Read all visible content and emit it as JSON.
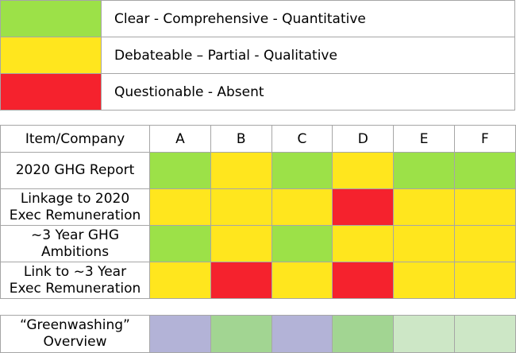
{
  "colors": {
    "green": "#9ce148",
    "yellow": "#ffe61e",
    "red": "#f5222d",
    "lavender": "#b3b3d7",
    "mid_green": "#a2d592",
    "light_green": "#cde7c6"
  },
  "legend": [
    {
      "color": "green",
      "label": "Clear - Comprehensive - Quantitative"
    },
    {
      "color": "yellow",
      "label": "Debateable – Partial - Qualitative"
    },
    {
      "color": "red",
      "label": "Questionable - Absent"
    }
  ],
  "grid": {
    "corner_label": "Item/Company",
    "companies": [
      "A",
      "B",
      "C",
      "D",
      "E",
      "F"
    ],
    "rows": [
      {
        "label_lines": [
          "2020 GHG Report"
        ],
        "ratings": [
          "green",
          "yellow",
          "green",
          "yellow",
          "green",
          "green"
        ]
      },
      {
        "label_lines": [
          "Linkage to 2020",
          "Exec Remuneration"
        ],
        "ratings": [
          "yellow",
          "yellow",
          "yellow",
          "red",
          "yellow",
          "yellow"
        ]
      },
      {
        "label_lines": [
          "~3 Year GHG",
          "Ambitions"
        ],
        "ratings": [
          "green",
          "yellow",
          "green",
          "yellow",
          "yellow",
          "yellow"
        ]
      },
      {
        "label_lines": [
          "Link to ~3 Year",
          "Exec Remuneration"
        ],
        "ratings": [
          "yellow",
          "red",
          "yellow",
          "red",
          "yellow",
          "yellow"
        ]
      }
    ]
  },
  "overview": {
    "label_lines": [
      "“Greenwashing”",
      "Overview"
    ],
    "colors": [
      "lavender",
      "mid_green",
      "lavender",
      "mid_green",
      "light_green",
      "light_green"
    ]
  }
}
